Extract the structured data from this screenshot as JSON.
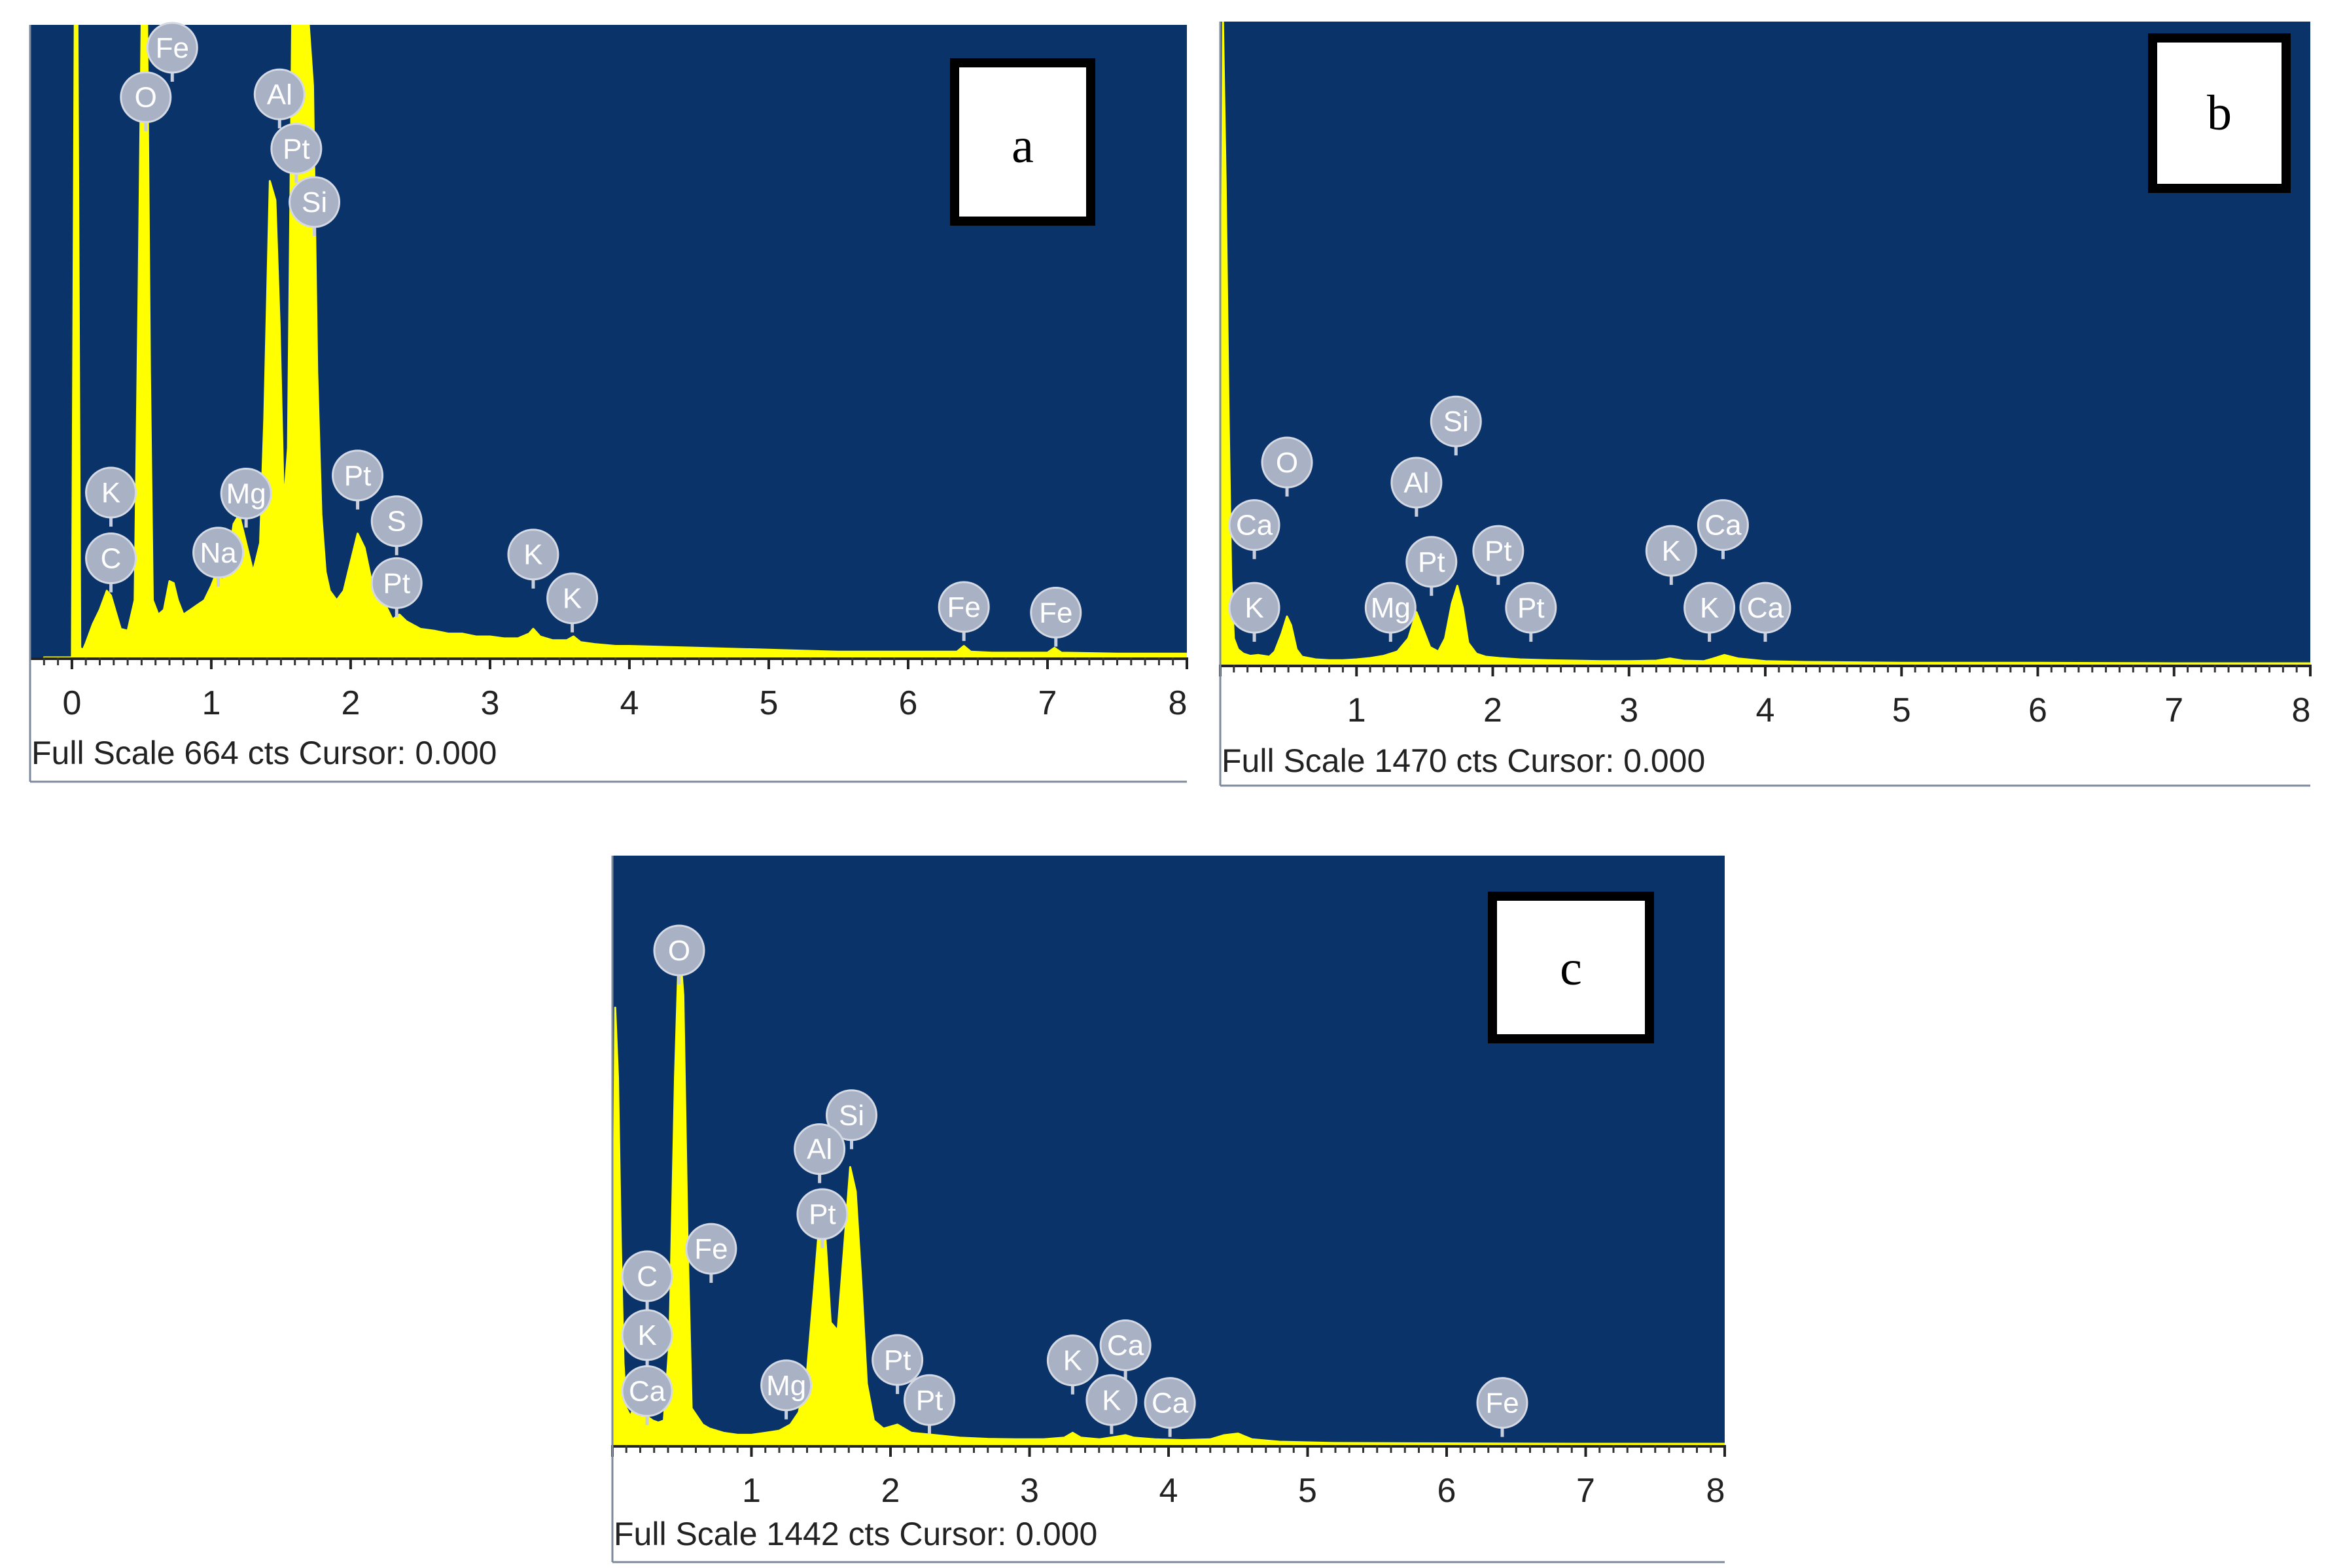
{
  "colors": {
    "plot_background": "#0a3369",
    "spectrum": "#ffff00",
    "marker": "#a9b1c4"
  },
  "chart_data": [
    {
      "type": "area",
      "panel_label": "a",
      "footer": "Full Scale 664 cts Cursor: 0.000",
      "xlim": [
        -0.3,
        8.0
      ],
      "ylim": [
        0,
        664
      ],
      "x_ticks": [
        0,
        1,
        2,
        3,
        4,
        5,
        6,
        7,
        8
      ],
      "x_tick_labels": [
        "0",
        "1",
        "2",
        "3",
        "4",
        "5",
        "6",
        "7",
        "8"
      ],
      "spectrum": {
        "x": [
          -0.2,
          0.0,
          0.02,
          0.04,
          0.06,
          0.08,
          0.1,
          0.15,
          0.2,
          0.25,
          0.28,
          0.31,
          0.35,
          0.4,
          0.45,
          0.48,
          0.5,
          0.52,
          0.54,
          0.56,
          0.58,
          0.62,
          0.66,
          0.7,
          0.73,
          0.76,
          0.8,
          0.85,
          0.9,
          0.95,
          1.0,
          1.04,
          1.08,
          1.12,
          1.16,
          1.2,
          1.25,
          1.3,
          1.35,
          1.38,
          1.42,
          1.46,
          1.49,
          1.52,
          1.55,
          1.58,
          1.62,
          1.66,
          1.7,
          1.73,
          1.76,
          1.79,
          1.82,
          1.85,
          1.9,
          1.95,
          2.0,
          2.05,
          2.1,
          2.15,
          2.2,
          2.25,
          2.3,
          2.35,
          2.4,
          2.5,
          2.6,
          2.7,
          2.8,
          2.9,
          3.0,
          3.1,
          3.2,
          3.28,
          3.31,
          3.36,
          3.45,
          3.55,
          3.6,
          3.65,
          3.75,
          3.9,
          4.0,
          4.5,
          5.0,
          5.5,
          6.0,
          6.35,
          6.4,
          6.45,
          6.6,
          7.0,
          7.05,
          7.1,
          7.5,
          8.0
        ],
        "counts": [
          0,
          0,
          664,
          664,
          10,
          8,
          15,
          35,
          50,
          70,
          65,
          50,
          30,
          28,
          60,
          400,
          664,
          664,
          664,
          300,
          60,
          45,
          50,
          80,
          78,
          60,
          45,
          50,
          55,
          60,
          75,
          90,
          80,
          100,
          140,
          150,
          120,
          90,
          120,
          250,
          500,
          480,
          350,
          160,
          220,
          664,
          664,
          664,
          664,
          600,
          300,
          150,
          90,
          70,
          60,
          70,
          100,
          130,
          115,
          80,
          60,
          55,
          40,
          45,
          38,
          30,
          28,
          25,
          25,
          22,
          22,
          20,
          20,
          25,
          30,
          22,
          18,
          18,
          22,
          16,
          14,
          12,
          12,
          10,
          8,
          6,
          6,
          6,
          12,
          6,
          5,
          5,
          10,
          5,
          4,
          4
        ]
      },
      "markers": [
        {
          "label": "Fe",
          "x": 0.72,
          "count": 640
        },
        {
          "label": "O",
          "x": 0.53,
          "count": 588
        },
        {
          "label": "Al",
          "x": 1.49,
          "count": 591
        },
        {
          "label": "Pt",
          "x": 1.61,
          "count": 534
        },
        {
          "label": "Si",
          "x": 1.74,
          "count": 478
        },
        {
          "label": "K",
          "x": 0.28,
          "count": 173
        },
        {
          "label": "Mg",
          "x": 1.25,
          "count": 172
        },
        {
          "label": "Pt",
          "x": 2.05,
          "count": 191
        },
        {
          "label": "C",
          "x": 0.28,
          "count": 104
        },
        {
          "label": "Na",
          "x": 1.05,
          "count": 110
        },
        {
          "label": "S",
          "x": 2.33,
          "count": 143
        },
        {
          "label": "Pt",
          "x": 2.33,
          "count": 78
        },
        {
          "label": "K",
          "x": 3.31,
          "count": 108
        },
        {
          "label": "K",
          "x": 3.59,
          "count": 62
        },
        {
          "label": "Fe",
          "x": 6.4,
          "count": 53
        },
        {
          "label": "Fe",
          "x": 7.06,
          "count": 47
        }
      ]
    },
    {
      "type": "area",
      "panel_label": "b",
      "footer": "Full Scale 1470 cts Cursor: 0.000",
      "xlim": [
        0.0,
        8.0
      ],
      "ylim": [
        0,
        1470
      ],
      "x_ticks": [
        1,
        2,
        3,
        4,
        5,
        6,
        7,
        8
      ],
      "x_tick_labels": [
        "1",
        "2",
        "3",
        "4",
        "5",
        "6",
        "7",
        "8"
      ],
      "spectrum": {
        "x": [
          0.0,
          0.02,
          0.04,
          0.06,
          0.08,
          0.1,
          0.13,
          0.17,
          0.22,
          0.28,
          0.32,
          0.36,
          0.4,
          0.45,
          0.49,
          0.52,
          0.56,
          0.6,
          0.7,
          0.8,
          0.9,
          1.0,
          1.1,
          1.2,
          1.3,
          1.38,
          1.44,
          1.49,
          1.54,
          1.6,
          1.65,
          1.7,
          1.74,
          1.78,
          1.82,
          1.88,
          1.95,
          2.05,
          2.2,
          2.4,
          2.6,
          2.8,
          3.0,
          3.2,
          3.3,
          3.4,
          3.55,
          3.62,
          3.7,
          3.8,
          4.0,
          4.3,
          5.0,
          6.0,
          7.0,
          8.0
        ],
        "counts": [
          0,
          1470,
          1100,
          600,
          200,
          60,
          35,
          25,
          20,
          22,
          20,
          18,
          30,
          70,
          110,
          90,
          35,
          18,
          12,
          10,
          10,
          12,
          15,
          20,
          30,
          60,
          120,
          80,
          40,
          30,
          60,
          140,
          180,
          130,
          50,
          25,
          18,
          15,
          12,
          10,
          9,
          8,
          8,
          9,
          14,
          9,
          8,
          14,
          22,
          14,
          8,
          6,
          4,
          4,
          3,
          3
        ]
      },
      "markers": [
        {
          "label": "Si",
          "x": 1.73,
          "count": 556
        },
        {
          "label": "O",
          "x": 0.49,
          "count": 462
        },
        {
          "label": "Al",
          "x": 1.44,
          "count": 416
        },
        {
          "label": "Ca",
          "x": 0.25,
          "count": 319
        },
        {
          "label": "Pt",
          "x": 1.55,
          "count": 235
        },
        {
          "label": "Pt",
          "x": 2.04,
          "count": 260
        },
        {
          "label": "K",
          "x": 3.31,
          "count": 260
        },
        {
          "label": "Ca",
          "x": 3.69,
          "count": 319
        },
        {
          "label": "K",
          "x": 0.25,
          "count": 130
        },
        {
          "label": "Mg",
          "x": 1.25,
          "count": 130
        },
        {
          "label": "Pt",
          "x": 2.28,
          "count": 130
        },
        {
          "label": "K",
          "x": 3.59,
          "count": 130
        },
        {
          "label": "Ca",
          "x": 4.0,
          "count": 130
        }
      ]
    },
    {
      "type": "area",
      "panel_label": "c",
      "footer": "Full Scale 1442 cts Cursor: 0.000",
      "xlim": [
        0.0,
        8.0
      ],
      "ylim": [
        0,
        1442
      ],
      "x_ticks": [
        1,
        2,
        3,
        4,
        5,
        6,
        7,
        8
      ],
      "x_tick_labels": [
        "1",
        "2",
        "3",
        "4",
        "5",
        "6",
        "7",
        "8"
      ],
      "spectrum": {
        "x": [
          0.0,
          0.02,
          0.04,
          0.06,
          0.08,
          0.1,
          0.13,
          0.17,
          0.21,
          0.25,
          0.29,
          0.33,
          0.37,
          0.41,
          0.45,
          0.48,
          0.51,
          0.54,
          0.57,
          0.61,
          0.65,
          0.7,
          0.8,
          0.9,
          1.0,
          1.1,
          1.2,
          1.28,
          1.34,
          1.4,
          1.45,
          1.49,
          1.53,
          1.57,
          1.62,
          1.67,
          1.71,
          1.75,
          1.79,
          1.83,
          1.88,
          1.95,
          2.05,
          2.15,
          2.3,
          2.5,
          2.7,
          2.9,
          3.1,
          3.25,
          3.31,
          3.37,
          3.5,
          3.62,
          3.69,
          3.75,
          3.9,
          4.1,
          4.3,
          4.4,
          4.5,
          4.6,
          4.8,
          5.2,
          6.0,
          7.0,
          8.0
        ],
        "counts": [
          0,
          1070,
          900,
          500,
          200,
          90,
          70,
          110,
          90,
          70,
          60,
          55,
          60,
          250,
          900,
          1240,
          1100,
          500,
          90,
          70,
          50,
          40,
          30,
          25,
          25,
          30,
          35,
          50,
          80,
          180,
          380,
          550,
          520,
          300,
          280,
          500,
          680,
          620,
          400,
          150,
          60,
          40,
          50,
          30,
          25,
          18,
          15,
          14,
          14,
          18,
          30,
          18,
          14,
          20,
          24,
          18,
          14,
          12,
          14,
          24,
          28,
          14,
          8,
          5,
          4,
          3,
          3
        ]
      },
      "markers": [
        {
          "label": "O",
          "x": 0.48,
          "count": 1210
        },
        {
          "label": "Si",
          "x": 1.72,
          "count": 807
        },
        {
          "label": "Al",
          "x": 1.49,
          "count": 724
        },
        {
          "label": "Pt",
          "x": 1.51,
          "count": 565
        },
        {
          "label": "Fe",
          "x": 0.71,
          "count": 480
        },
        {
          "label": "C",
          "x": 0.25,
          "count": 413
        },
        {
          "label": "K",
          "x": 0.25,
          "count": 269
        },
        {
          "label": "Pt",
          "x": 2.05,
          "count": 208
        },
        {
          "label": "K",
          "x": 3.31,
          "count": 207
        },
        {
          "label": "Ca",
          "x": 3.69,
          "count": 244
        },
        {
          "label": "Ca",
          "x": 0.25,
          "count": 132
        },
        {
          "label": "Mg",
          "x": 1.25,
          "count": 146
        },
        {
          "label": "Pt",
          "x": 2.28,
          "count": 110
        },
        {
          "label": "K",
          "x": 3.59,
          "count": 110
        },
        {
          "label": "Ca",
          "x": 4.01,
          "count": 103
        },
        {
          "label": "Fe",
          "x": 6.4,
          "count": 103
        }
      ]
    }
  ]
}
